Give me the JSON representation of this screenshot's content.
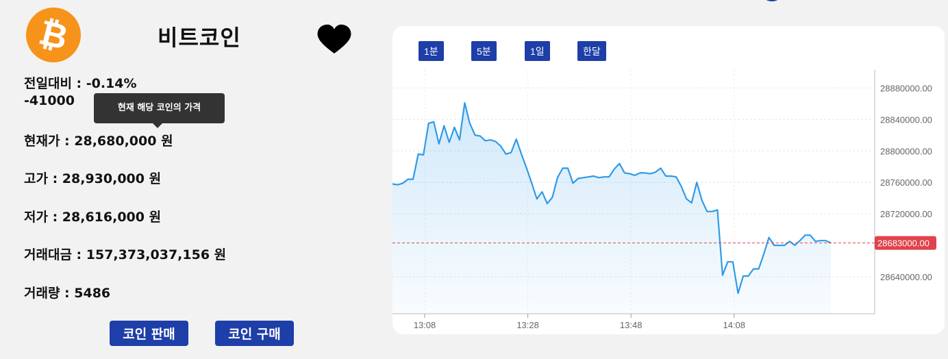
{
  "coin": {
    "logo_glyph": "₿",
    "logo_color": "#f7931a",
    "name": "비트코인",
    "favorite_icon": "heart-icon"
  },
  "stats": {
    "change_rate": "전일대비 : -0.14%",
    "change_amount": "-41000",
    "current_price": "현재가 : 28,680,000 원",
    "high_price": "고가 : 28,930,000 원",
    "low_price": "저가 : 28,616,000 원",
    "trade_value": "거래대금 : 157,373,037,156 원",
    "trade_volume": "거래량 : 5486"
  },
  "tooltip": {
    "text": "현재 해당 코인의 가격"
  },
  "actions": {
    "sell_label": "코인 판매",
    "buy_label": "코인 구매"
  },
  "chart_ranges": [
    "1분",
    "5분",
    "1일",
    "한달"
  ],
  "colors": {
    "accent": "#1e3ea8",
    "line": "#2f9ae8",
    "current_line": "#e0434b"
  },
  "chart_data": {
    "type": "area",
    "x_ticks": [
      "13:08",
      "13:28",
      "13:48",
      "14:08"
    ],
    "y_ticks": [
      "28880000.00",
      "28840000.00",
      "28800000.00",
      "28760000.00",
      "28720000.00",
      "28640000.00"
    ],
    "current_price_label": "28683000.00",
    "current_price": 28683000,
    "ylim": [
      28593000,
      28903000
    ],
    "x_minutes_range": [
      0,
      85
    ],
    "series": [
      {
        "x": [
          0,
          1,
          2,
          3,
          4,
          5,
          6,
          7,
          8,
          9,
          10,
          11,
          12,
          13,
          14,
          15,
          16,
          17,
          18,
          19,
          20,
          21,
          22,
          23,
          24,
          25,
          26,
          27,
          28,
          29,
          30,
          31,
          32,
          33,
          34,
          35,
          36,
          37,
          38,
          39,
          40,
          41,
          42,
          43,
          44,
          45,
          46,
          47,
          48,
          49,
          50,
          51,
          52,
          53,
          54,
          55,
          56,
          57,
          58,
          59,
          60,
          61,
          62,
          63,
          64,
          65,
          66,
          67,
          68,
          69,
          70,
          71,
          72,
          73,
          74,
          75,
          76,
          77,
          78,
          79,
          80,
          81,
          82,
          83,
          84,
          85
        ],
        "y": [
          28758000,
          28757000,
          28759000,
          28764000,
          28764000,
          28796000,
          28795000,
          28835000,
          28837000,
          28809000,
          28832000,
          28811000,
          28830000,
          28814000,
          28861000,
          28835000,
          28820000,
          28819000,
          28813000,
          28814000,
          28812000,
          28806000,
          28796000,
          28798000,
          28815000,
          28796000,
          28778000,
          28759000,
          28739000,
          28748000,
          28733000,
          28741000,
          28766000,
          28778000,
          28778000,
          28759000,
          28765000,
          28766000,
          28767000,
          28768000,
          28766000,
          28767000,
          28767000,
          28777000,
          28784000,
          28772000,
          28771000,
          28769000,
          28772000,
          28772000,
          28771000,
          28773000,
          28778000,
          28768000,
          28768000,
          28767000,
          28755000,
          28739000,
          28734000,
          28760000,
          28737000,
          28723000,
          28723000,
          28725000,
          28642000,
          28659000,
          28659000,
          28619000,
          28641000,
          28641000,
          28650000,
          28650000,
          28669000,
          28690000,
          28680000,
          28680000,
          28680000,
          28685000,
          28680000,
          28686000,
          28693000,
          28693000,
          28685000,
          28686000,
          28686000,
          28683000
        ]
      }
    ]
  }
}
